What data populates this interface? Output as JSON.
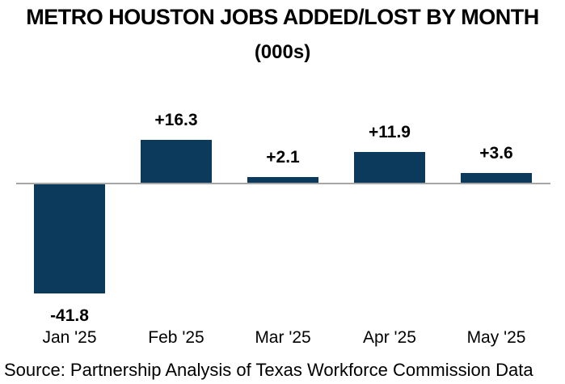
{
  "title": "METRO HOUSTON JOBS ADDED/LOST BY MONTH",
  "subtitle": "(000s)",
  "source": "Source: Partnership Analysis of Texas Workforce Commission Data",
  "colors": {
    "bar": "#0c3a5c",
    "axis": "#a6a6a6",
    "text": "#000000",
    "background": "#ffffff"
  },
  "chart_data": {
    "type": "bar",
    "title": "METRO HOUSTON JOBS ADDED/LOST BY MONTH",
    "subtitle": "(000s)",
    "categories": [
      "Jan '25",
      "Feb '25",
      "Mar '25",
      "Apr '25",
      "May '25"
    ],
    "values": [
      -41.8,
      16.3,
      2.1,
      11.9,
      3.6
    ],
    "data_labels": [
      "-41.8",
      "+16.3",
      "+2.1",
      "+11.9",
      "+3.6"
    ],
    "xlabel": "",
    "ylabel": "",
    "ylim": [
      -45,
      20
    ],
    "grid": false,
    "legend": null,
    "bar_color": "#0c3a5c",
    "source": "Source: Partnership Analysis of Texas Workforce Commission Data"
  }
}
